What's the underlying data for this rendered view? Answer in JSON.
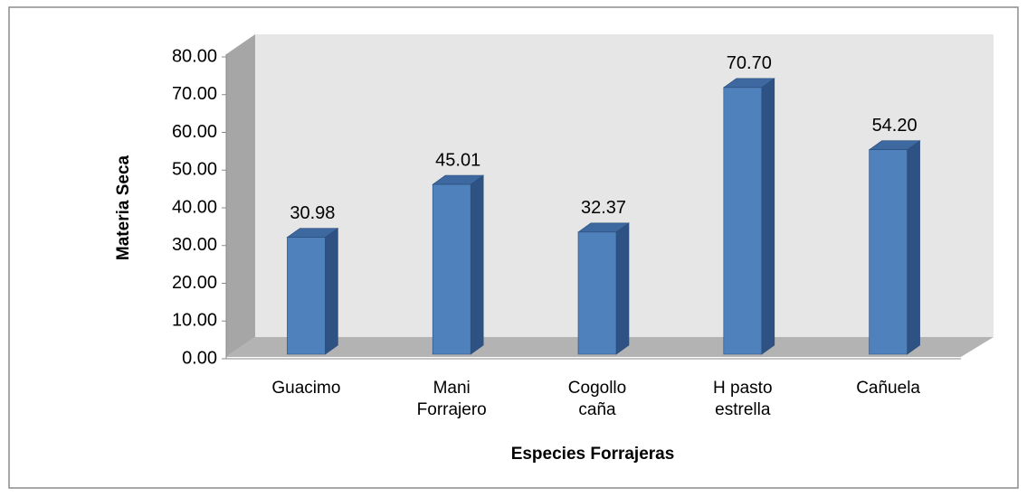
{
  "chart_data": {
    "type": "bar3d",
    "x_label": "Especies Forrajeras",
    "y_label": "Materia Seca",
    "categories": [
      "Guacimo",
      "Mani Forrajero",
      "Cogollo caña",
      "H pasto estrella",
      "Cañuela"
    ],
    "values": [
      30.98,
      45.01,
      32.37,
      70.7,
      54.2
    ],
    "value_labels": [
      "30.98",
      "45.01",
      "32.37",
      "70.70",
      "54.20"
    ],
    "color": "#4f81bd",
    "ylim": [
      0,
      80
    ],
    "yticks": [
      {
        "value": 0,
        "label": "0.00"
      },
      {
        "value": 10,
        "label": "10.00"
      },
      {
        "value": 20,
        "label": "20.00"
      },
      {
        "value": 30,
        "label": "30.00"
      },
      {
        "value": 40,
        "label": "40.00"
      },
      {
        "value": 50,
        "label": "50.00"
      },
      {
        "value": 60,
        "label": "60.00"
      },
      {
        "value": 70,
        "label": "70.00"
      },
      {
        "value": 80,
        "label": "80.00"
      }
    ],
    "grid": false
  }
}
